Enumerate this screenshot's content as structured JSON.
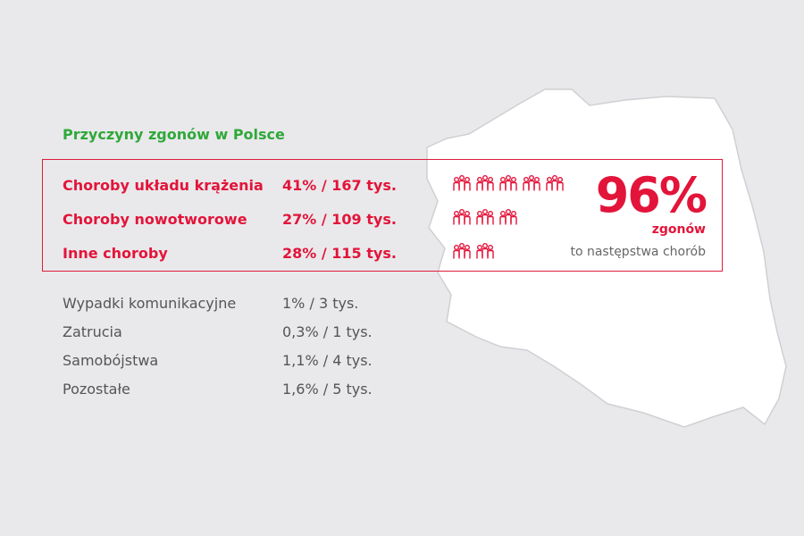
{
  "title": "Przyczyny zgonów w Polsce",
  "major_causes": [
    {
      "label": "Choroby układu krążenia",
      "value": "41% / 167 tys.",
      "icons": 5
    },
    {
      "label": "Choroby nowotworowe",
      "value": "27% / 109 tys.",
      "icons": 3
    },
    {
      "label": "Inne choroby",
      "value": "28% / 115 tys.",
      "icons": 2
    }
  ],
  "minor_causes": [
    {
      "label": "Wypadki komunikacyjne",
      "value": "1% / 3 tys."
    },
    {
      "label": "Zatrucia",
      "value": "0,3% / 1 tys."
    },
    {
      "label": "Samobójstwa",
      "value": "1,1% / 4 tys."
    },
    {
      "label": "Pozostałe",
      "value": "1,6% / 5 tys."
    }
  ],
  "summary": {
    "percent": "96%",
    "sub": "zgonów",
    "caption": "to następstwa chorób"
  },
  "colors": {
    "accent_red": "#e3143a",
    "title_green": "#2fa83a",
    "background": "#e9e9eb",
    "map_fill": "#ffffff"
  }
}
